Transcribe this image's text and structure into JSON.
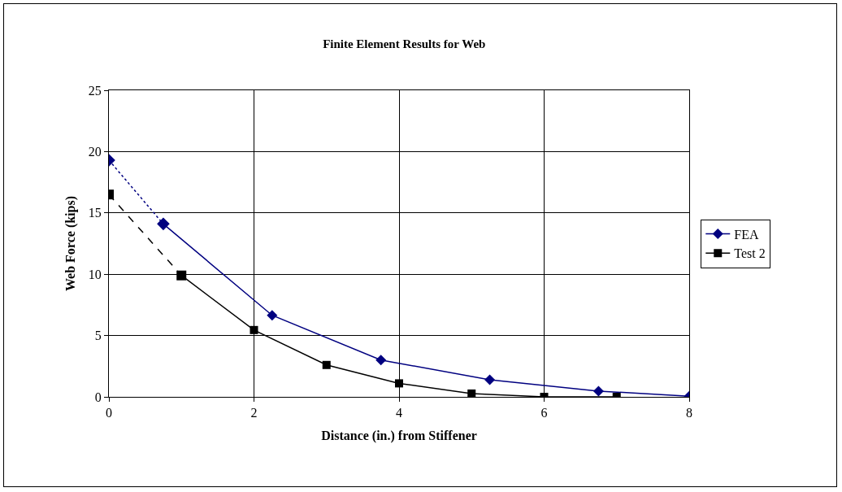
{
  "chart_data": {
    "type": "line",
    "title": "Finite Element Results for Web",
    "xlabel": "Distance (in.) from Stiffener",
    "ylabel": "Web Force (kips)",
    "series": [
      {
        "name": "FEA",
        "color": "#000080",
        "marker": "diamond",
        "line_style": "solid",
        "x": [
          0.75,
          2.25,
          3.75,
          5.25,
          6.75,
          8
        ],
        "values": [
          14.1,
          6.65,
          3.0,
          1.4,
          0.47,
          0.05
        ]
      },
      {
        "name": "Test 2",
        "color": "#000000",
        "marker": "square",
        "line_style": "solid",
        "x": [
          1,
          2,
          3,
          4,
          5,
          6,
          7
        ],
        "values": [
          9.9,
          5.45,
          2.6,
          1.1,
          0.27,
          0,
          0
        ]
      },
      {
        "color": "#000080",
        "marker": "diamond",
        "line_style": "dotted",
        "x": [
          0,
          0.75
        ],
        "values": [
          19.3,
          14.1
        ]
      },
      {
        "color": "#000000",
        "marker": "square",
        "line_style": "dashed",
        "x": [
          0,
          1
        ],
        "values": [
          16.5,
          9.9
        ]
      }
    ],
    "xlim": [
      0,
      8
    ],
    "xticks": [
      0,
      2,
      4,
      6,
      8
    ],
    "ylim": [
      0,
      25
    ],
    "yticks": [
      0,
      5,
      10,
      15,
      20,
      25
    ],
    "grid": true,
    "legend": "right"
  }
}
